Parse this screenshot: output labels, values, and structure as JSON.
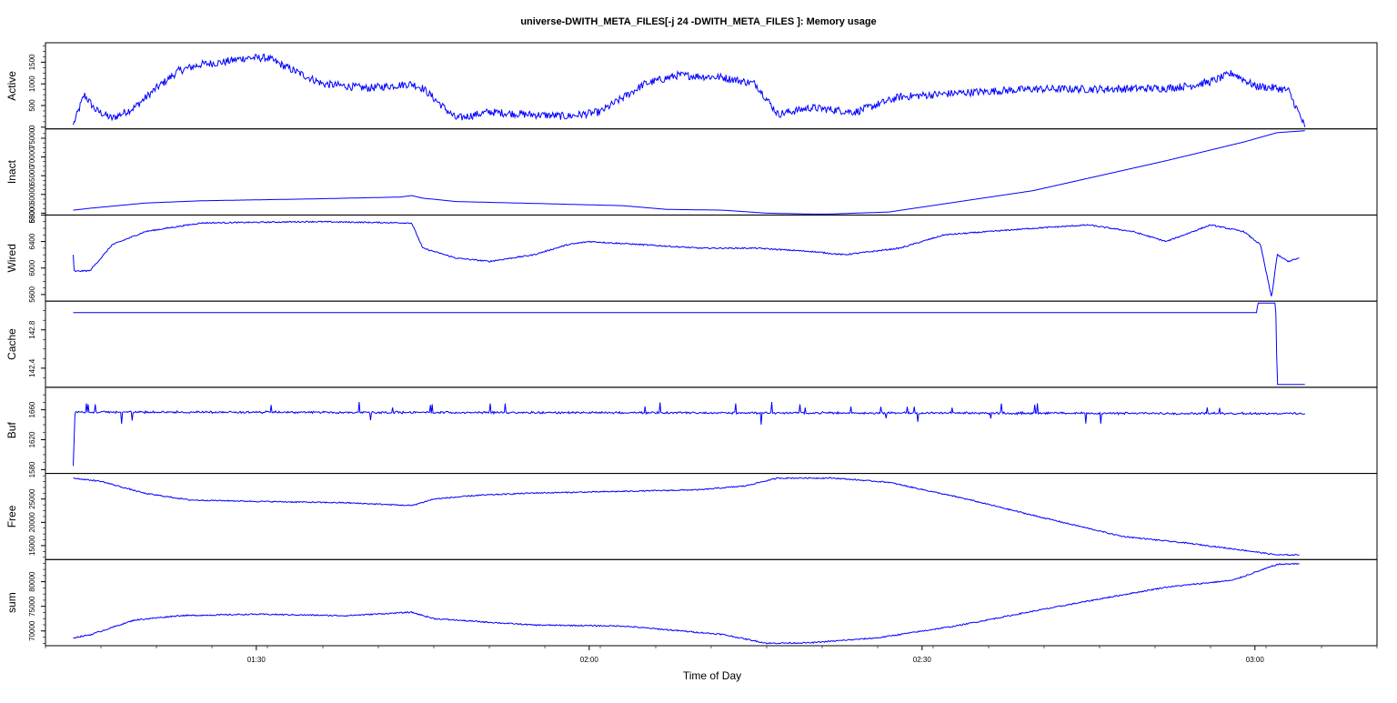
{
  "chart_data": {
    "type": "line",
    "title": "universe-DWITH_META_FILES[-j 24 -DWITH_META_FILES ]: Memory usage",
    "xlabel": "Time of Day",
    "x_range": [
      "01:11:00",
      "03:11:00"
    ],
    "x_ticks": [
      "01:30",
      "02:00",
      "02:30",
      "03:00"
    ],
    "line_color": "#0000ff",
    "grid": false,
    "panels": [
      {
        "ylabel": "Active",
        "ylim": [
          -40,
          1950
        ],
        "y_ticks": [
          "0",
          "500",
          "1000",
          "1500"
        ],
        "noise": 90,
        "series": {
          "name": "Active",
          "x": [
            "01:13:30",
            "01:14:30",
            "01:15:30",
            "01:17:00",
            "01:19:00",
            "01:21:00",
            "01:23:00",
            "01:25:00",
            "01:27:00",
            "01:29:00",
            "01:31:00",
            "01:33:00",
            "01:36:00",
            "01:40:00",
            "01:44:00",
            "01:45:00",
            "01:48:00",
            "01:51:00",
            "01:54:00",
            "01:58:00",
            "02:01:00",
            "02:05:00",
            "02:08:00",
            "02:12:00",
            "02:15:00",
            "02:17:00",
            "02:20:00",
            "02:24:00",
            "02:28:00",
            "02:34:00",
            "02:40:00",
            "02:46:00",
            "02:52:00",
            "02:54:00",
            "02:56:00",
            "02:58:00",
            "03:00:00",
            "03:02:00",
            "03:03:00",
            "03:04:00",
            "03:04:30"
          ],
          "y": [
            50,
            750,
            400,
            200,
            450,
            900,
            1300,
            1450,
            1500,
            1600,
            1600,
            1350,
            1000,
            900,
            1000,
            900,
            200,
            350,
            300,
            250,
            350,
            1000,
            1200,
            1150,
            1000,
            300,
            450,
            350,
            700,
            800,
            880,
            880,
            900,
            950,
            1050,
            1250,
            950,
            900,
            850,
            300,
            0
          ]
        }
      },
      {
        "ylabel": "Inact",
        "ylim": [
          54500,
          77500
        ],
        "y_ticks": [
          "55000",
          "60000",
          "65000",
          "70000",
          "75000"
        ],
        "noise": 0,
        "series": {
          "name": "Inact",
          "x": [
            "01:13:30",
            "01:15:00",
            "01:20:00",
            "01:25:00",
            "01:35:00",
            "01:43:00",
            "01:44:00",
            "01:45:00",
            "01:48:00",
            "01:55:00",
            "02:03:00",
            "02:07:00",
            "02:12:00",
            "02:16:00",
            "02:21:00",
            "02:27:00",
            "02:40:00",
            "02:52:00",
            "02:59:00",
            "03:02:00",
            "03:04:30"
          ],
          "y": [
            55800,
            56300,
            57700,
            58300,
            58800,
            59300,
            59700,
            59000,
            58100,
            57600,
            57000,
            56000,
            55800,
            55000,
            54700,
            55300,
            61000,
            69000,
            74000,
            76500,
            77000
          ]
        }
      },
      {
        "ylabel": "Wired",
        "ylim": [
          5500,
          6800
        ],
        "y_ticks": [
          "5600",
          "6000",
          "6400",
          "6800"
        ],
        "noise": 10,
        "series": {
          "name": "Wired",
          "x": [
            "01:13:30",
            "01:13:35",
            "01:15:00",
            "01:16:00",
            "01:17:00",
            "01:20:00",
            "01:25:00",
            "01:35:00",
            "01:44:00",
            "01:45:00",
            "01:48:00",
            "01:51:00",
            "01:55:00",
            "01:58:00",
            "02:00:00",
            "02:05:00",
            "02:10:00",
            "02:15:00",
            "02:20:00",
            "02:23:00",
            "02:28:00",
            "02:32:00",
            "02:40:00",
            "02:45:00",
            "02:49:00",
            "02:52:00",
            "02:56:00",
            "02:59:00",
            "03:00:30",
            "03:01:30",
            "03:02:00",
            "03:03:00",
            "03:04:00"
          ],
          "y": [
            6200,
            5950,
            5960,
            6150,
            6350,
            6550,
            6680,
            6700,
            6680,
            6300,
            6150,
            6100,
            6200,
            6350,
            6400,
            6350,
            6300,
            6300,
            6250,
            6200,
            6300,
            6500,
            6600,
            6650,
            6550,
            6400,
            6650,
            6550,
            6350,
            5550,
            6200,
            6100,
            6150
          ]
        }
      },
      {
        "ylabel": "Cache",
        "ylim": [
          142.2,
          143.1
        ],
        "y_ticks": [
          "142.4",
          "142.8"
        ],
        "noise": 0,
        "series": {
          "name": "Cache",
          "x": [
            "01:13:30",
            "02:58:00",
            "03:00:10",
            "03:00:15",
            "03:01:50",
            "03:01:55",
            "03:02:00",
            "03:03:00",
            "03:04:30"
          ],
          "y": [
            142.98,
            142.98,
            142.98,
            143.08,
            143.08,
            142.9,
            142.23,
            142.23,
            142.23
          ]
        }
      },
      {
        "ylabel": "Buf",
        "ylim": [
          1575,
          1690
        ],
        "y_ticks": [
          "1580",
          "1620",
          "1660"
        ],
        "noise": 1,
        "series": {
          "name": "Buf",
          "x": [
            "01:13:30",
            "01:13:40",
            "03:04:30"
          ],
          "y": [
            1585,
            1657,
            1655
          ]
        }
      },
      {
        "ylabel": "Free",
        "ylim": [
          12000,
          30500
        ],
        "y_ticks": [
          "15000",
          "20000",
          "25000"
        ],
        "noise": 130,
        "series": {
          "name": "Free",
          "x": [
            "01:13:30",
            "01:16:00",
            "01:20:00",
            "01:24:00",
            "01:30:00",
            "01:38:00",
            "01:44:00",
            "01:46:00",
            "01:50:00",
            "01:55:00",
            "02:00:00",
            "02:04:00",
            "02:10:00",
            "02:14:00",
            "02:17:00",
            "02:22:00",
            "02:27:00",
            "02:34:00",
            "02:40:00",
            "02:48:00",
            "02:54:00",
            "02:59:00",
            "03:02:00",
            "03:04:00"
          ],
          "y": [
            29500,
            28800,
            26200,
            24800,
            24500,
            24200,
            23600,
            25000,
            25800,
            26300,
            26500,
            26700,
            27000,
            27800,
            29500,
            29500,
            28600,
            25000,
            21500,
            17000,
            15500,
            14000,
            13000,
            13000
          ]
        }
      },
      {
        "ylabel": "sum",
        "ylim": [
          67000,
          84500
        ],
        "y_ticks": [
          "70000",
          "75000",
          "80000"
        ],
        "noise": 130,
        "series": {
          "name": "sum",
          "x": [
            "01:13:30",
            "01:15:00",
            "01:19:00",
            "01:23:00",
            "01:30:00",
            "01:38:00",
            "01:44:00",
            "01:46:00",
            "01:50:00",
            "01:55:00",
            "02:03:00",
            "02:12:00",
            "02:16:00",
            "02:20:00",
            "02:26:00",
            "02:33:00",
            "02:40:00",
            "02:46:00",
            "02:52:00",
            "02:58:00",
            "03:02:00",
            "03:04:00"
          ],
          "y": [
            68600,
            69200,
            72200,
            73100,
            73400,
            73100,
            73800,
            72500,
            71900,
            71200,
            71000,
            69300,
            67500,
            67600,
            68600,
            71000,
            74000,
            76500,
            78900,
            80300,
            83500,
            83700
          ]
        }
      }
    ]
  }
}
